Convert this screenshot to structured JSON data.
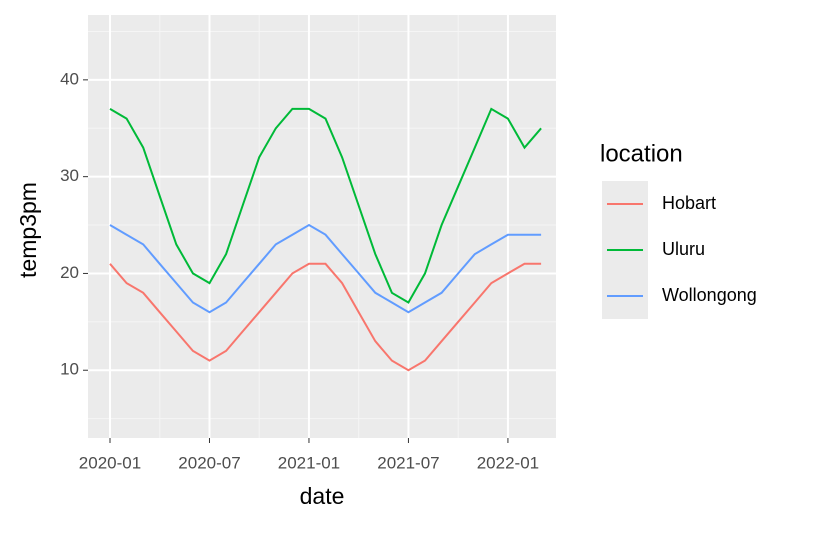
{
  "chart_data": {
    "type": "line",
    "x_label": "date",
    "y_label": "temp3pm",
    "legend_title": "location",
    "legend_position": "right",
    "x": [
      "2020-01",
      "2020-02",
      "2020-03",
      "2020-04",
      "2020-05",
      "2020-06",
      "2020-07",
      "2020-08",
      "2020-09",
      "2020-10",
      "2020-11",
      "2020-12",
      "2021-01",
      "2021-02",
      "2021-03",
      "2021-04",
      "2021-05",
      "2021-06",
      "2021-07",
      "2021-08",
      "2021-09",
      "2021-10",
      "2021-11",
      "2021-12",
      "2022-01",
      "2022-02",
      "2022-03"
    ],
    "series": [
      {
        "name": "Hobart",
        "color": "#f8766d",
        "values": [
          21,
          19,
          18,
          16,
          14,
          12,
          11,
          12,
          14,
          16,
          18,
          20,
          21,
          21,
          19,
          16,
          13,
          11,
          10,
          11,
          13,
          15,
          17,
          19,
          20,
          21,
          21
        ]
      },
      {
        "name": "Uluru",
        "color": "#00ba38",
        "values": [
          37,
          36,
          33,
          28,
          23,
          20,
          19,
          22,
          27,
          32,
          35,
          37,
          37,
          36,
          32,
          27,
          22,
          18,
          17,
          20,
          25,
          29,
          33,
          37,
          36,
          33,
          35
        ]
      },
      {
        "name": "Wollongong",
        "color": "#619cff",
        "values": [
          25,
          24,
          23,
          21,
          19,
          17,
          16,
          17,
          19,
          21,
          23,
          24,
          25,
          24,
          22,
          20,
          18,
          17,
          16,
          17,
          18,
          20,
          22,
          23,
          24,
          24,
          24
        ]
      }
    ],
    "xticks": [
      "2020-01",
      "2020-07",
      "2021-01",
      "2021-07",
      "2022-01"
    ],
    "ylim": [
      3,
      46.7
    ],
    "yticks": [
      10,
      20,
      30,
      40
    ],
    "grid": true
  }
}
